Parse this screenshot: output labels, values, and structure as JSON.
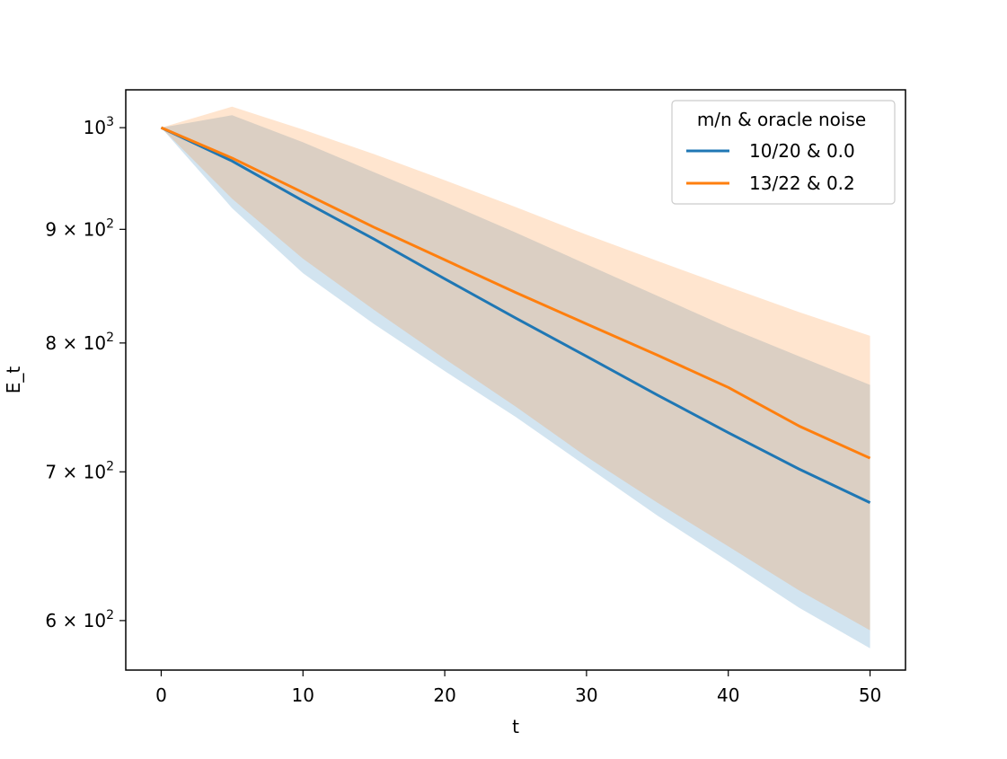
{
  "chart_data": {
    "type": "line",
    "title": "",
    "xlabel": "t",
    "ylabel": "E_t",
    "x_scale": "linear",
    "y_scale": "log",
    "xlim": [
      -2.5,
      52.5
    ],
    "ylim": [
      570,
      1040
    ],
    "x_ticks": [
      0,
      10,
      20,
      30,
      40,
      50
    ],
    "x_tick_labels": [
      "0",
      "10",
      "20",
      "30",
      "40",
      "50"
    ],
    "y_ticks": [
      {
        "value": 1000,
        "base": "10",
        "exp": "3"
      },
      {
        "value": 900,
        "base": "9 × 10",
        "exp": "2"
      },
      {
        "value": 800,
        "base": "8 × 10",
        "exp": "2"
      },
      {
        "value": 700,
        "base": "7 × 10",
        "exp": "2"
      },
      {
        "value": 600,
        "base": "6 × 10",
        "exp": "2"
      }
    ],
    "grid": false,
    "legend": {
      "title": "m/n & oracle noise",
      "placement": "top-right"
    },
    "x": [
      0,
      5,
      10,
      15,
      20,
      25,
      30,
      35,
      40,
      45,
      50
    ],
    "series": [
      {
        "name": "10/20 & 0.0",
        "color": "#1f77b4",
        "values": [
          1000,
          966,
          927,
          891,
          855,
          821,
          789,
          758,
          729,
          702,
          678
        ],
        "band_upper": [
          1000,
          1013,
          985,
          955,
          926,
          897,
          868,
          840,
          813,
          789,
          766
        ],
        "band_lower": [
          1000,
          920,
          860,
          816,
          777,
          741,
          704,
          669,
          638,
          608,
          583
        ]
      },
      {
        "name": "13/22 & 0.2",
        "color": "#ff7f0e",
        "values": [
          1000,
          969,
          935,
          902,
          872,
          843,
          816,
          790,
          764,
          734,
          710
        ],
        "band_upper": [
          1000,
          1022,
          998,
          973,
          947,
          921,
          895,
          871,
          848,
          826,
          806
        ],
        "band_lower": [
          1000,
          929,
          873,
          828,
          787,
          749,
          711,
          678,
          648,
          619,
          594
        ]
      }
    ]
  }
}
